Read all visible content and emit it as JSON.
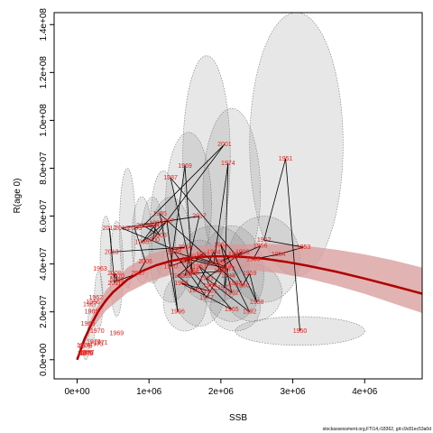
{
  "chart_data": {
    "type": "scatter",
    "xlabel": "SSB",
    "ylabel": "R(age 0)",
    "xlim": [
      -320000,
      4800000
    ],
    "ylim": [
      -8000000,
      145000000
    ],
    "x_ticks": [
      0,
      1000000,
      2000000,
      3000000,
      4000000
    ],
    "x_tick_labels": [
      "0e+00",
      "1e+06",
      "2e+06",
      "3e+06",
      "4e+06"
    ],
    "y_ticks": [
      0,
      20000000,
      40000000,
      60000000,
      80000000,
      100000000,
      120000000,
      140000000
    ],
    "y_tick_labels": [
      "0.0e+00",
      "2.0e+07",
      "4.0e+07",
      "6.0e+07",
      "8.0e+07",
      "1.0e+08",
      "1.2e+08",
      "1.4e+08"
    ],
    "fit_curve": {
      "color": "#b00000",
      "x": [
        0,
        100000,
        200000,
        300000,
        400000,
        500000,
        700000,
        900000,
        1100000,
        1300000,
        1500000,
        1700000,
        1900000,
        2100000,
        2300000,
        2600000,
        2900000,
        3200000,
        3600000,
        4000000,
        4400000,
        4800000
      ],
      "y": [
        0,
        8500000,
        15000000,
        20500000,
        24800000,
        28200000,
        33500000,
        37000000,
        39500000,
        41200000,
        42300000,
        42900000,
        43200000,
        43200000,
        43000000,
        42200000,
        40900000,
        39300000,
        36800000,
        33900000,
        30800000,
        27600000
      ]
    },
    "confidence_band": {
      "color": "#d89a9a",
      "x": [
        0,
        200000,
        400000,
        700000,
        1000000,
        1300000,
        1600000,
        1900000,
        2200000,
        2500000,
        2800000,
        3200000,
        3600000,
        4000000,
        4400000,
        4800000
      ],
      "lower": [
        0,
        12500000,
        20500000,
        28000000,
        32500000,
        35500000,
        37000000,
        37800000,
        37800000,
        37200000,
        36200000,
        34000000,
        31000000,
        27500000,
        23500000,
        19500000
      ],
      "upper": [
        0,
        17500000,
        29000000,
        38500000,
        44000000,
        46500000,
        47700000,
        48000000,
        48200000,
        48300000,
        48300000,
        47500000,
        46000000,
        44000000,
        41500000,
        38500000
      ]
    },
    "points": [
      {
        "label": "1950",
        "x": 3100000,
        "y": 12000000
      },
      {
        "label": "1951",
        "x": 2900000,
        "y": 84000000
      },
      {
        "label": "1952",
        "x": 2600000,
        "y": 50000000
      },
      {
        "label": "1953",
        "x": 3150000,
        "y": 47000000
      },
      {
        "label": "1954",
        "x": 2800000,
        "y": 44000000
      },
      {
        "label": "1955",
        "x": 2450000,
        "y": 42000000
      },
      {
        "label": "1956",
        "x": 2550000,
        "y": 47500000
      },
      {
        "label": "1957",
        "x": 2200000,
        "y": 43000000
      },
      {
        "label": "1958",
        "x": 2500000,
        "y": 24000000
      },
      {
        "label": "1959",
        "x": 2400000,
        "y": 36000000
      },
      {
        "label": "1960",
        "x": 2300000,
        "y": 31000000
      },
      {
        "label": "1961",
        "x": 2000000,
        "y": 48000000
      },
      {
        "label": "1962",
        "x": 2150000,
        "y": 28000000
      },
      {
        "label": "1963",
        "x": 1700000,
        "y": 39000000
      },
      {
        "label": "1964",
        "x": 1850000,
        "y": 31000000
      },
      {
        "label": "1965",
        "x": 2150000,
        "y": 21000000
      },
      {
        "label": "1966",
        "x": 1450000,
        "y": 32000000
      },
      {
        "label": "1967",
        "x": 1850000,
        "y": 28500000
      },
      {
        "label": "1968",
        "x": 1600000,
        "y": 37000000
      },
      {
        "label": "1969",
        "x": 1500000,
        "y": 81000000
      },
      {
        "label": "1970",
        "x": 1300000,
        "y": 39000000
      },
      {
        "label": "1971",
        "x": 1550000,
        "y": 42000000
      },
      {
        "label": "1972",
        "x": 2100000,
        "y": 38000000
      },
      {
        "label": "1973",
        "x": 2050000,
        "y": 30000000
      },
      {
        "label": "1974",
        "x": 2100000,
        "y": 82000000
      },
      {
        "label": "1975",
        "x": 1900000,
        "y": 40000000
      },
      {
        "label": "1976",
        "x": 1350000,
        "y": 45000000
      },
      {
        "label": "1977",
        "x": 1800000,
        "y": 26000000
      },
      {
        "label": "1978",
        "x": 2050000,
        "y": 39000000
      },
      {
        "label": "1979",
        "x": 1650000,
        "y": 43000000
      },
      {
        "label": "1980",
        "x": 1500000,
        "y": 41000000
      },
      {
        "label": "1981",
        "x": 1750000,
        "y": 44000000
      },
      {
        "label": "1982",
        "x": 1400000,
        "y": 35000000
      },
      {
        "label": "1983",
        "x": 1650000,
        "y": 29000000
      },
      {
        "label": "1984",
        "x": 1900000,
        "y": 45000000
      },
      {
        "label": "1985",
        "x": 2000000,
        "y": 37000000
      },
      {
        "label": "1986",
        "x": 1600000,
        "y": 36000000
      },
      {
        "label": "1987",
        "x": 1300000,
        "y": 76000000
      },
      {
        "label": "1988",
        "x": 2200000,
        "y": 44000000
      },
      {
        "label": "1989",
        "x": 2000000,
        "y": 41000000
      },
      {
        "label": "1990",
        "x": 2300000,
        "y": 45000000
      },
      {
        "label": "1991",
        "x": 1800000,
        "y": 34000000
      },
      {
        "label": "1992",
        "x": 2400000,
        "y": 20000000
      },
      {
        "label": "1993",
        "x": 2200000,
        "y": 32000000
      },
      {
        "label": "1994",
        "x": 2100000,
        "y": 35000000
      },
      {
        "label": "1995",
        "x": 1150000,
        "y": 61000000
      },
      {
        "label": "1996",
        "x": 1400000,
        "y": 20000000
      },
      {
        "label": "1997",
        "x": 1250000,
        "y": 58000000
      },
      {
        "label": "1998",
        "x": 900000,
        "y": 49000000
      },
      {
        "label": "1999",
        "x": 1100000,
        "y": 57000000
      },
      {
        "label": "2000",
        "x": 1050000,
        "y": 50000000
      },
      {
        "label": "2001",
        "x": 2050000,
        "y": 90000000
      },
      {
        "label": "2002",
        "x": 920000,
        "y": 56000000
      },
      {
        "label": "2003",
        "x": 1150000,
        "y": 52000000
      },
      {
        "label": "2004",
        "x": 1050000,
        "y": 56000000
      },
      {
        "label": "2005",
        "x": 800000,
        "y": 55000000
      },
      {
        "label": "2006",
        "x": 950000,
        "y": 41000000
      },
      {
        "label": "2007",
        "x": 850000,
        "y": 36000000
      },
      {
        "label": "2008",
        "x": 550000,
        "y": 33000000
      },
      {
        "label": "2009",
        "x": 520000,
        "y": 36000000
      },
      {
        "label": "2010",
        "x": 560000,
        "y": 35000000
      },
      {
        "label": "2011",
        "x": 520000,
        "y": 32000000
      },
      {
        "label": "2012",
        "x": 450000,
        "y": 55000000
      },
      {
        "label": "2013",
        "x": 480000,
        "y": 45000000
      },
      {
        "label": "2014",
        "x": 1500000,
        "y": 47000000
      },
      {
        "label": "2015",
        "x": 1350000,
        "y": 46000000
      },
      {
        "label": "2016",
        "x": 620000,
        "y": 55000000
      },
      {
        "label": "2017",
        "x": 1700000,
        "y": 60000000
      },
      {
        "label": "2018",
        "x": 1500000,
        "y": 35000000
      },
      {
        "label": "1964b",
        "x": 1850000,
        "y": 31000000
      },
      {
        "label": "1963",
        "x": 320000,
        "y": 38000000
      },
      {
        "label": "1962",
        "x": 260000,
        "y": 26000000
      },
      {
        "label": "1966",
        "x": 220000,
        "y": 24000000
      },
      {
        "label": "1965",
        "x": 200000,
        "y": 20000000
      },
      {
        "label": "1967",
        "x": 180000,
        "y": 23000000
      },
      {
        "label": "1968",
        "x": 150000,
        "y": 15000000
      },
      {
        "label": "1969",
        "x": 550000,
        "y": 11000000
      },
      {
        "label": "1970",
        "x": 280000,
        "y": 12000000
      },
      {
        "label": "1971",
        "x": 330000,
        "y": 7000000
      },
      {
        "label": "1972",
        "x": 230000,
        "y": 7500000
      },
      {
        "label": "1973",
        "x": 270000,
        "y": 6500000
      },
      {
        "label": "1974",
        "x": 90000,
        "y": 6000000
      },
      {
        "label": "1975",
        "x": 110000,
        "y": 5500000
      },
      {
        "label": "1976",
        "x": 120000,
        "y": 3000000
      },
      {
        "label": "1977",
        "x": 140000,
        "y": 3000000
      },
      {
        "label": "1978",
        "x": 100000,
        "y": 2500000
      },
      {
        "label": "1979",
        "x": 130000,
        "y": 2500000
      }
    ],
    "ellipses": [
      {
        "cx": 3050000,
        "cy": 90000000,
        "rx": 650000,
        "ry": 55000000
      },
      {
        "cx": 2150000,
        "cy": 70000000,
        "rx": 400000,
        "ry": 35000000
      },
      {
        "cx": 1800000,
        "cy": 85000000,
        "rx": 330000,
        "ry": 42000000
      },
      {
        "cx": 1550000,
        "cy": 65000000,
        "rx": 320000,
        "ry": 30000000
      },
      {
        "cx": 3100000,
        "cy": 12000000,
        "rx": 900000,
        "ry": 6000000
      },
      {
        "cx": 2600000,
        "cy": 42000000,
        "rx": 500000,
        "ry": 18000000
      },
      {
        "cx": 2150000,
        "cy": 36000000,
        "rx": 450000,
        "ry": 20000000
      },
      {
        "cx": 1900000,
        "cy": 40000000,
        "rx": 500000,
        "ry": 16000000
      },
      {
        "cx": 1700000,
        "cy": 32000000,
        "rx": 380000,
        "ry": 18000000
      },
      {
        "cx": 1300000,
        "cy": 46000000,
        "rx": 300000,
        "ry": 22000000
      },
      {
        "cx": 1200000,
        "cy": 57000000,
        "rx": 180000,
        "ry": 22000000
      },
      {
        "cx": 1050000,
        "cy": 50000000,
        "rx": 160000,
        "ry": 18000000
      },
      {
        "cx": 900000,
        "cy": 50000000,
        "rx": 140000,
        "ry": 18000000
      },
      {
        "cx": 700000,
        "cy": 55000000,
        "rx": 110000,
        "ry": 25000000
      },
      {
        "cx": 550000,
        "cy": 38000000,
        "rx": 90000,
        "ry": 20000000
      },
      {
        "cx": 400000,
        "cy": 42000000,
        "rx": 80000,
        "ry": 18000000
      },
      {
        "cx": 300000,
        "cy": 25000000,
        "rx": 60000,
        "ry": 12000000
      },
      {
        "cx": 200000,
        "cy": 15000000,
        "rx": 50000,
        "ry": 8000000
      },
      {
        "cx": 120000,
        "cy": 5000000,
        "rx": 40000,
        "ry": 5000000
      },
      {
        "cx": 2450000,
        "cy": 28000000,
        "rx": 400000,
        "ry": 12000000
      },
      {
        "cx": 1500000,
        "cy": 24000000,
        "rx": 300000,
        "ry": 12000000
      },
      {
        "cx": 2200000,
        "cy": 22000000,
        "rx": 350000,
        "ry": 10000000
      }
    ],
    "path_order": [
      "1950",
      "1951",
      "1952",
      "1953",
      "1954",
      "1955",
      "1956",
      "1957",
      "1958",
      "1959",
      "1960",
      "1961",
      "1962",
      "1963",
      "1964",
      "1965",
      "1966",
      "1967",
      "1968",
      "1969",
      "1970",
      "1971",
      "1972",
      "1973",
      "1974",
      "1975",
      "1976",
      "1977",
      "1978",
      "1979",
      "1980",
      "1981",
      "1982",
      "1983",
      "1984",
      "1985",
      "1986",
      "1987",
      "1988",
      "1989",
      "1990",
      "1991",
      "1992",
      "1993",
      "1994",
      "1995",
      "1996",
      "1997",
      "1998",
      "1999",
      "2000",
      "2001",
      "2002",
      "2003",
      "2004",
      "2005",
      "2006",
      "2007",
      "2008",
      "2009",
      "2010",
      "2011",
      "2012",
      "2013",
      "2014",
      "2015",
      "2016",
      "2017",
      "2018"
    ]
  },
  "footer": {
    "source": "stockassessment.org,FTI14,r18362, git:c9c81ec53a0d"
  }
}
